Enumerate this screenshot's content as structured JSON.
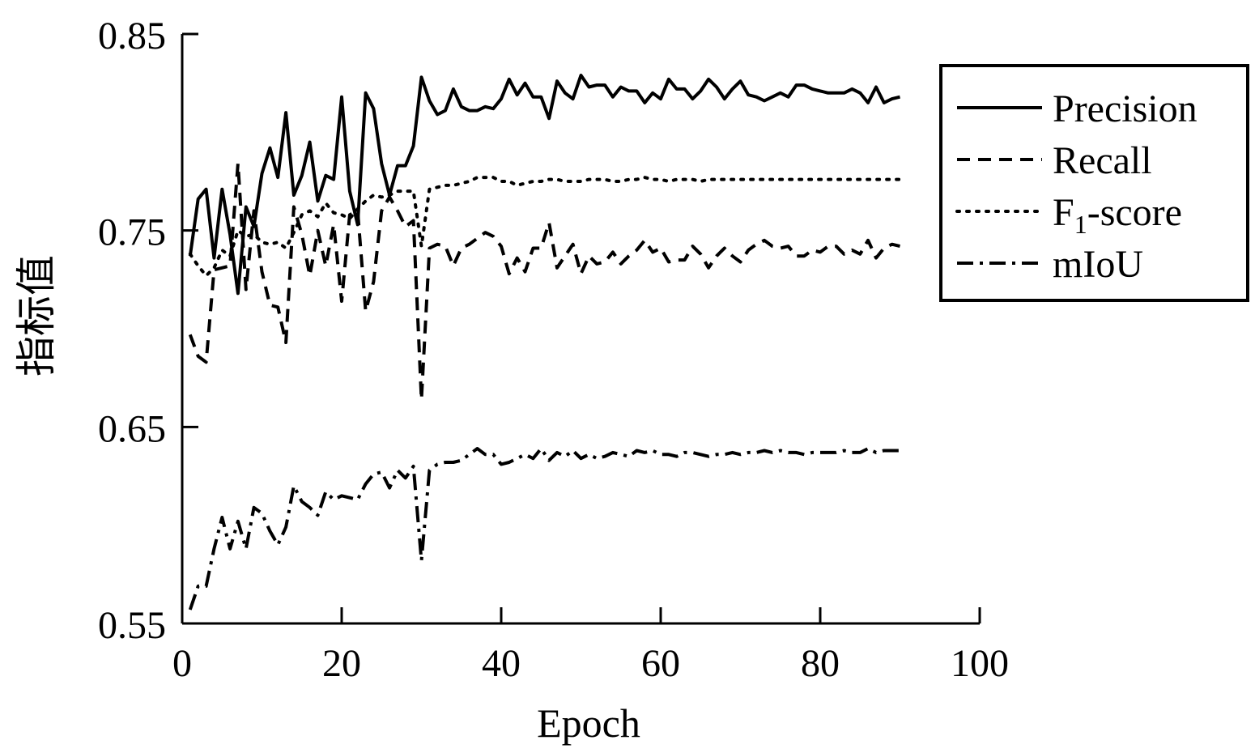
{
  "chart_data": {
    "type": "line",
    "xlabel": "Epoch",
    "ylabel": "指标值",
    "xlim": [
      0,
      100
    ],
    "ylim": [
      0.55,
      0.85
    ],
    "xticks": [
      "0",
      "20",
      "40",
      "60",
      "80",
      "100"
    ],
    "yticks": [
      "0.55",
      "0.65",
      "0.75",
      "0.85"
    ],
    "grid": false,
    "legend_position": "top-right",
    "legend": [
      {
        "label": "Precision",
        "sub": "",
        "rest": ""
      },
      {
        "label": "Recall",
        "sub": "",
        "rest": ""
      },
      {
        "label": "F",
        "sub": "1",
        "rest": "-score"
      },
      {
        "label": "mIoU",
        "sub": "",
        "rest": ""
      }
    ],
    "series": [
      {
        "name": "Precision",
        "dash": "solid",
        "x": [
          1,
          2,
          3,
          4,
          5,
          6,
          7,
          8,
          9,
          10,
          11,
          12,
          13,
          14,
          15,
          16,
          17,
          18,
          19,
          20,
          21,
          22,
          23,
          24,
          25,
          26,
          27,
          28,
          29,
          30,
          31,
          32,
          33,
          34,
          35,
          36,
          37,
          38,
          39,
          40,
          41,
          42,
          43,
          44,
          45,
          46,
          47,
          48,
          49,
          50,
          51,
          52,
          53,
          54,
          55,
          56,
          57,
          58,
          59,
          60,
          61,
          62,
          63,
          64,
          65,
          66,
          67,
          68,
          69,
          70,
          71,
          72,
          73,
          74,
          75,
          76,
          77,
          78,
          79,
          80,
          81,
          82,
          83,
          84,
          85,
          86,
          87,
          88,
          89,
          90
        ],
        "y": [
          0.737,
          0.766,
          0.771,
          0.736,
          0.771,
          0.748,
          0.718,
          0.762,
          0.752,
          0.779,
          0.792,
          0.777,
          0.81,
          0.768,
          0.778,
          0.795,
          0.765,
          0.778,
          0.776,
          0.818,
          0.77,
          0.753,
          0.82,
          0.812,
          0.784,
          0.768,
          0.783,
          0.783,
          0.793,
          0.828,
          0.816,
          0.809,
          0.811,
          0.822,
          0.813,
          0.811,
          0.811,
          0.813,
          0.812,
          0.817,
          0.827,
          0.819,
          0.825,
          0.818,
          0.818,
          0.807,
          0.826,
          0.82,
          0.817,
          0.829,
          0.823,
          0.824,
          0.824,
          0.818,
          0.823,
          0.821,
          0.821,
          0.815,
          0.82,
          0.817,
          0.827,
          0.822,
          0.822,
          0.817,
          0.821,
          0.827,
          0.823,
          0.817,
          0.822,
          0.826,
          0.819,
          0.818,
          0.816,
          0.818,
          0.82,
          0.818,
          0.824,
          0.824,
          0.822,
          0.821,
          0.82,
          0.82,
          0.82,
          0.822,
          0.82,
          0.815,
          0.823,
          0.815,
          0.817,
          0.818
        ]
      },
      {
        "name": "Recall",
        "dash": "dashed",
        "x": [
          1,
          2,
          3,
          4,
          5,
          6,
          7,
          8,
          9,
          10,
          11,
          12,
          13,
          14,
          15,
          16,
          17,
          18,
          19,
          20,
          21,
          22,
          23,
          24,
          25,
          26,
          27,
          28,
          29,
          30,
          31,
          32,
          33,
          34,
          35,
          36,
          37,
          38,
          39,
          40,
          41,
          42,
          43,
          44,
          45,
          46,
          47,
          48,
          49,
          50,
          51,
          52,
          53,
          54,
          55,
          56,
          57,
          58,
          59,
          60,
          61,
          62,
          63,
          64,
          65,
          66,
          67,
          68,
          69,
          70,
          71,
          72,
          73,
          74,
          75,
          76,
          77,
          78,
          79,
          80,
          81,
          82,
          83,
          84,
          85,
          86,
          87,
          88,
          89,
          90
        ],
        "y": [
          0.697,
          0.686,
          0.683,
          0.73,
          0.731,
          0.732,
          0.784,
          0.72,
          0.76,
          0.729,
          0.712,
          0.711,
          0.693,
          0.762,
          0.748,
          0.727,
          0.75,
          0.732,
          0.753,
          0.714,
          0.758,
          0.76,
          0.709,
          0.724,
          0.76,
          0.767,
          0.76,
          0.752,
          0.755,
          0.664,
          0.741,
          0.743,
          0.742,
          0.732,
          0.741,
          0.743,
          0.746,
          0.749,
          0.747,
          0.742,
          0.728,
          0.736,
          0.729,
          0.741,
          0.741,
          0.754,
          0.731,
          0.737,
          0.743,
          0.728,
          0.737,
          0.733,
          0.734,
          0.739,
          0.733,
          0.737,
          0.74,
          0.745,
          0.739,
          0.741,
          0.734,
          0.735,
          0.735,
          0.742,
          0.738,
          0.731,
          0.737,
          0.741,
          0.737,
          0.734,
          0.74,
          0.743,
          0.745,
          0.742,
          0.741,
          0.742,
          0.737,
          0.737,
          0.74,
          0.739,
          0.742,
          0.742,
          0.738,
          0.74,
          0.738,
          0.745,
          0.736,
          0.741,
          0.743,
          0.742
        ]
      },
      {
        "name": "F1-score",
        "dash": "dotted",
        "x": [
          1,
          2,
          3,
          4,
          5,
          6,
          7,
          8,
          9,
          10,
          11,
          12,
          13,
          14,
          15,
          16,
          17,
          18,
          19,
          20,
          21,
          22,
          23,
          24,
          25,
          26,
          27,
          28,
          29,
          30,
          31,
          32,
          33,
          34,
          35,
          36,
          37,
          38,
          39,
          40,
          41,
          42,
          43,
          44,
          45,
          46,
          47,
          48,
          49,
          50,
          51,
          52,
          53,
          54,
          55,
          56,
          57,
          58,
          59,
          60,
          61,
          62,
          63,
          64,
          65,
          66,
          67,
          68,
          69,
          70,
          71,
          72,
          73,
          74,
          75,
          76,
          77,
          78,
          79,
          80,
          81,
          82,
          83,
          84,
          85,
          86,
          87,
          88,
          89,
          90
        ],
        "y": [
          0.738,
          0.732,
          0.727,
          0.731,
          0.74,
          0.737,
          0.75,
          0.747,
          0.748,
          0.744,
          0.743,
          0.744,
          0.741,
          0.749,
          0.758,
          0.76,
          0.757,
          0.764,
          0.759,
          0.758,
          0.756,
          0.761,
          0.765,
          0.768,
          0.767,
          0.768,
          0.77,
          0.77,
          0.77,
          0.742,
          0.771,
          0.772,
          0.773,
          0.773,
          0.774,
          0.775,
          0.777,
          0.777,
          0.777,
          0.775,
          0.775,
          0.773,
          0.774,
          0.775,
          0.775,
          0.776,
          0.776,
          0.775,
          0.775,
          0.775,
          0.776,
          0.776,
          0.776,
          0.775,
          0.775,
          0.776,
          0.776,
          0.777,
          0.776,
          0.776,
          0.775,
          0.776,
          0.776,
          0.776,
          0.775,
          0.776,
          0.776,
          0.776,
          0.776,
          0.776,
          0.776,
          0.776,
          0.776,
          0.776,
          0.776,
          0.776,
          0.776,
          0.776,
          0.776,
          0.776,
          0.776,
          0.776,
          0.776,
          0.776,
          0.776,
          0.776,
          0.776,
          0.776,
          0.776,
          0.776
        ]
      },
      {
        "name": "mIoU",
        "dash": "dashdot",
        "x": [
          1,
          2,
          3,
          4,
          5,
          6,
          7,
          8,
          9,
          10,
          11,
          12,
          13,
          14,
          15,
          16,
          17,
          18,
          19,
          20,
          21,
          22,
          23,
          24,
          25,
          26,
          27,
          28,
          29,
          30,
          31,
          32,
          33,
          34,
          35,
          36,
          37,
          38,
          39,
          40,
          41,
          42,
          43,
          44,
          45,
          46,
          47,
          48,
          49,
          50,
          51,
          52,
          53,
          54,
          55,
          56,
          57,
          58,
          59,
          60,
          61,
          62,
          63,
          64,
          65,
          66,
          67,
          68,
          69,
          70,
          71,
          72,
          73,
          74,
          75,
          76,
          77,
          78,
          79,
          80,
          81,
          82,
          83,
          84,
          85,
          86,
          87,
          88,
          89,
          90
        ],
        "y": [
          0.557,
          0.569,
          0.569,
          0.588,
          0.604,
          0.588,
          0.602,
          0.588,
          0.609,
          0.606,
          0.597,
          0.59,
          0.599,
          0.62,
          0.612,
          0.609,
          0.605,
          0.617,
          0.613,
          0.615,
          0.614,
          0.613,
          0.621,
          0.626,
          0.627,
          0.619,
          0.628,
          0.624,
          0.63,
          0.582,
          0.628,
          0.631,
          0.632,
          0.632,
          0.633,
          0.636,
          0.639,
          0.636,
          0.636,
          0.631,
          0.632,
          0.634,
          0.636,
          0.634,
          0.639,
          0.633,
          0.637,
          0.635,
          0.638,
          0.634,
          0.636,
          0.634,
          0.635,
          0.637,
          0.636,
          0.635,
          0.638,
          0.637,
          0.638,
          0.636,
          0.636,
          0.635,
          0.637,
          0.637,
          0.636,
          0.635,
          0.636,
          0.636,
          0.637,
          0.636,
          0.637,
          0.637,
          0.638,
          0.637,
          0.638,
          0.637,
          0.637,
          0.636,
          0.637,
          0.637,
          0.637,
          0.637,
          0.638,
          0.637,
          0.637,
          0.639,
          0.637,
          0.638,
          0.638,
          0.638
        ]
      }
    ]
  }
}
